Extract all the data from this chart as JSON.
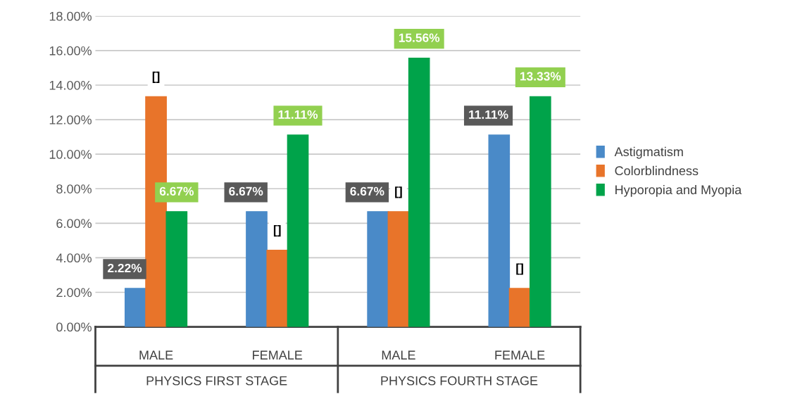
{
  "chart_data": {
    "type": "bar",
    "categories": [
      "MALE",
      "FEMALE",
      "MALE",
      "FEMALE"
    ],
    "annotations": [
      "PHYSICS FIRST STAGE",
      "PHYSICS FOURTH STAGE"
    ],
    "series": [
      {
        "name": "Astigmatism",
        "color": "#4a8ac8",
        "values": [
          2.22,
          6.67,
          6.67,
          11.11
        ],
        "value_labels": [
          "2.22%",
          "6.67%",
          "6.67%",
          "11.11%"
        ]
      },
      {
        "name": "Colorblindness",
        "color": "#e8742a",
        "values": [
          13.33,
          4.44,
          6.67,
          2.22
        ],
        "value_labels": [
          "[]",
          "[]",
          "[]",
          "[]"
        ]
      },
      {
        "name": "Hyporopia and Myopia",
        "color": "#00a34a",
        "values": [
          6.67,
          11.11,
          15.56,
          13.33
        ],
        "value_labels": [
          "6.67%",
          "11.11%",
          "15.56%",
          "13.33%"
        ]
      }
    ],
    "ylim": [
      0,
      18
    ],
    "yticks": [
      {
        "value": 0,
        "label": "0.00%"
      },
      {
        "value": 2,
        "label": "2.00%"
      },
      {
        "value": 4,
        "label": "4.00%"
      },
      {
        "value": 6,
        "label": "6.00%"
      },
      {
        "value": 8,
        "label": "8.00%"
      },
      {
        "value": 10,
        "label": "10.00%"
      },
      {
        "value": 12,
        "label": "12.00%"
      },
      {
        "value": 14,
        "label": "14.00%"
      },
      {
        "value": 16,
        "label": "16.00%"
      },
      {
        "value": 18,
        "label": "18.00%"
      }
    ],
    "grid": "y",
    "legend": "right"
  }
}
